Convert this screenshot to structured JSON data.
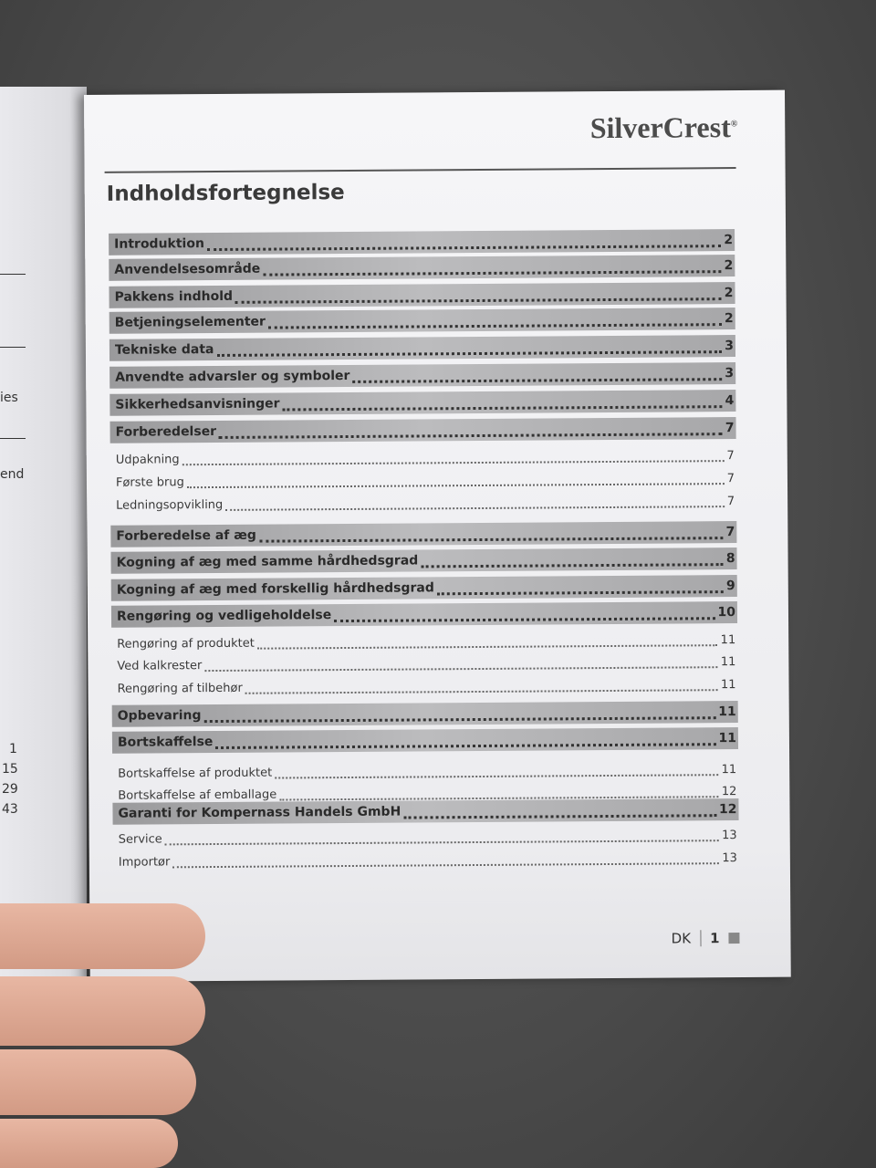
{
  "left_page": {
    "fragments": [
      "ies",
      "end"
    ],
    "numbers": [
      "1",
      "15",
      "29",
      "43"
    ]
  },
  "header": {
    "brand": "SilverCrest",
    "brand_mark": "®"
  },
  "title": "Indholdsfortegnelse",
  "toc": [
    {
      "label": "Introduktion",
      "page": "2",
      "level": "main"
    },
    {
      "label": "Anvendelsesområde",
      "page": "2",
      "level": "main"
    },
    {
      "label": "Pakkens indhold",
      "page": "2",
      "level": "main"
    },
    {
      "label": "Betjeningselementer",
      "page": "2",
      "level": "main"
    },
    {
      "label": "Tekniske data",
      "page": "3",
      "level": "main"
    },
    {
      "label": "Anvendte advarsler og symboler",
      "page": "3",
      "level": "main"
    },
    {
      "label": "Sikkerhedsanvisninger",
      "page": "4",
      "level": "main"
    },
    {
      "label": "Forberedelser",
      "page": "7",
      "level": "main"
    },
    {
      "label": "Udpakning",
      "page": "7",
      "level": "sub"
    },
    {
      "label": "Første brug",
      "page": "7",
      "level": "sub"
    },
    {
      "label": "Ledningsopvikling",
      "page": "7",
      "level": "sub"
    },
    {
      "label": "Forberedelse af æg",
      "page": "7",
      "level": "main"
    },
    {
      "label": "Kogning af æg med samme hårdhedsgrad",
      "page": "8",
      "level": "main"
    },
    {
      "label": "Kogning af æg med forskellig hårdhedsgrad",
      "page": "9",
      "level": "main"
    },
    {
      "label": "Rengøring og vedligeholdelse",
      "page": "10",
      "level": "main"
    },
    {
      "label": "Rengøring af produktet",
      "page": "11",
      "level": "sub"
    },
    {
      "label": "Ved kalkrester",
      "page": "11",
      "level": "sub"
    },
    {
      "label": "Rengøring af tilbehør",
      "page": "11",
      "level": "sub"
    },
    {
      "label": "Opbevaring",
      "page": "11",
      "level": "main"
    },
    {
      "label": "Bortskaffelse",
      "page": "11",
      "level": "main"
    },
    {
      "label": "Bortskaffelse af produktet",
      "page": "11",
      "level": "sub"
    },
    {
      "label": "Bortskaffelse af emballage",
      "page": "12",
      "level": "sub"
    },
    {
      "label": "Garanti for Kompernass Handels GmbH",
      "page": "12",
      "level": "main"
    },
    {
      "label": "Service",
      "page": "13",
      "level": "sub"
    },
    {
      "label": "Importør",
      "page": "13",
      "level": "sub"
    }
  ],
  "footer": {
    "language": "DK",
    "page_number": "1"
  }
}
